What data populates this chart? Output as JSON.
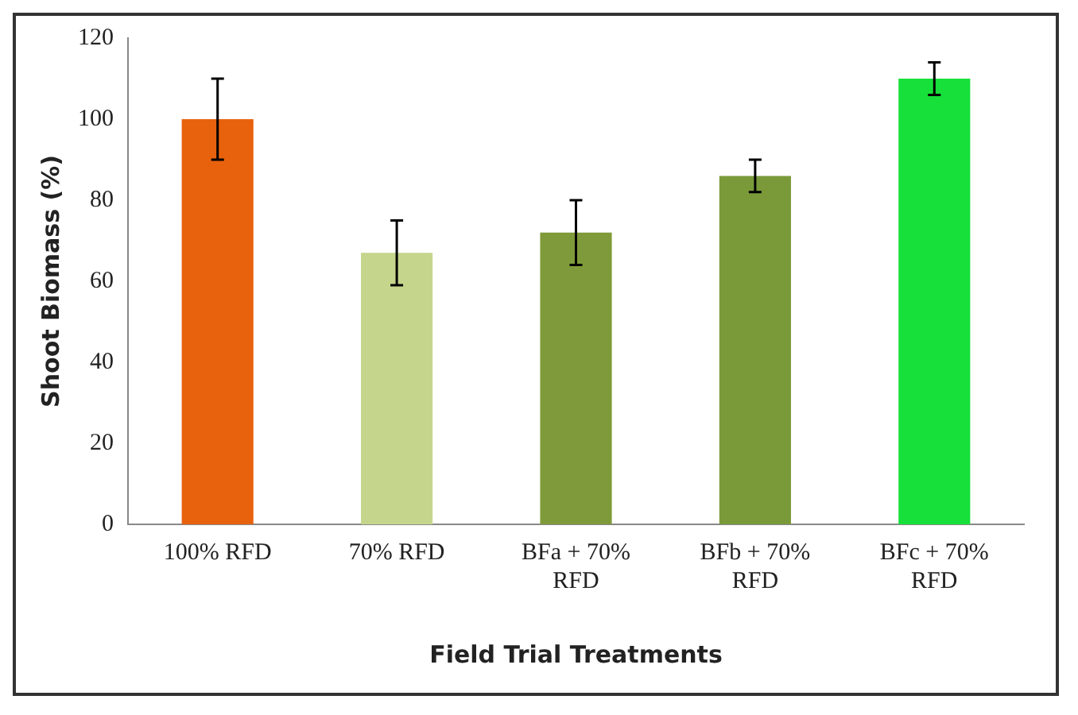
{
  "chart_data": {
    "type": "bar",
    "xlabel": "Field Trial Treatments",
    "ylabel": "Shoot Biomass (%)",
    "categories": [
      "100% RFD",
      "70% RFD",
      "BFa + 70% RFD",
      "BFb + 70% RFD",
      "BFc + 70% RFD"
    ],
    "values": [
      100,
      67,
      72,
      86,
      110
    ],
    "colors": [
      "#e8620e",
      "#c5d68c",
      "#7f9a3a",
      "#7a9a3a",
      "#17e03a"
    ],
    "errors": [
      10,
      8,
      8,
      4,
      4
    ],
    "ylim": [
      0,
      120
    ],
    "yticks": [
      0,
      20,
      40,
      60,
      80,
      100,
      120
    ],
    "grid": false,
    "legend": false
  }
}
